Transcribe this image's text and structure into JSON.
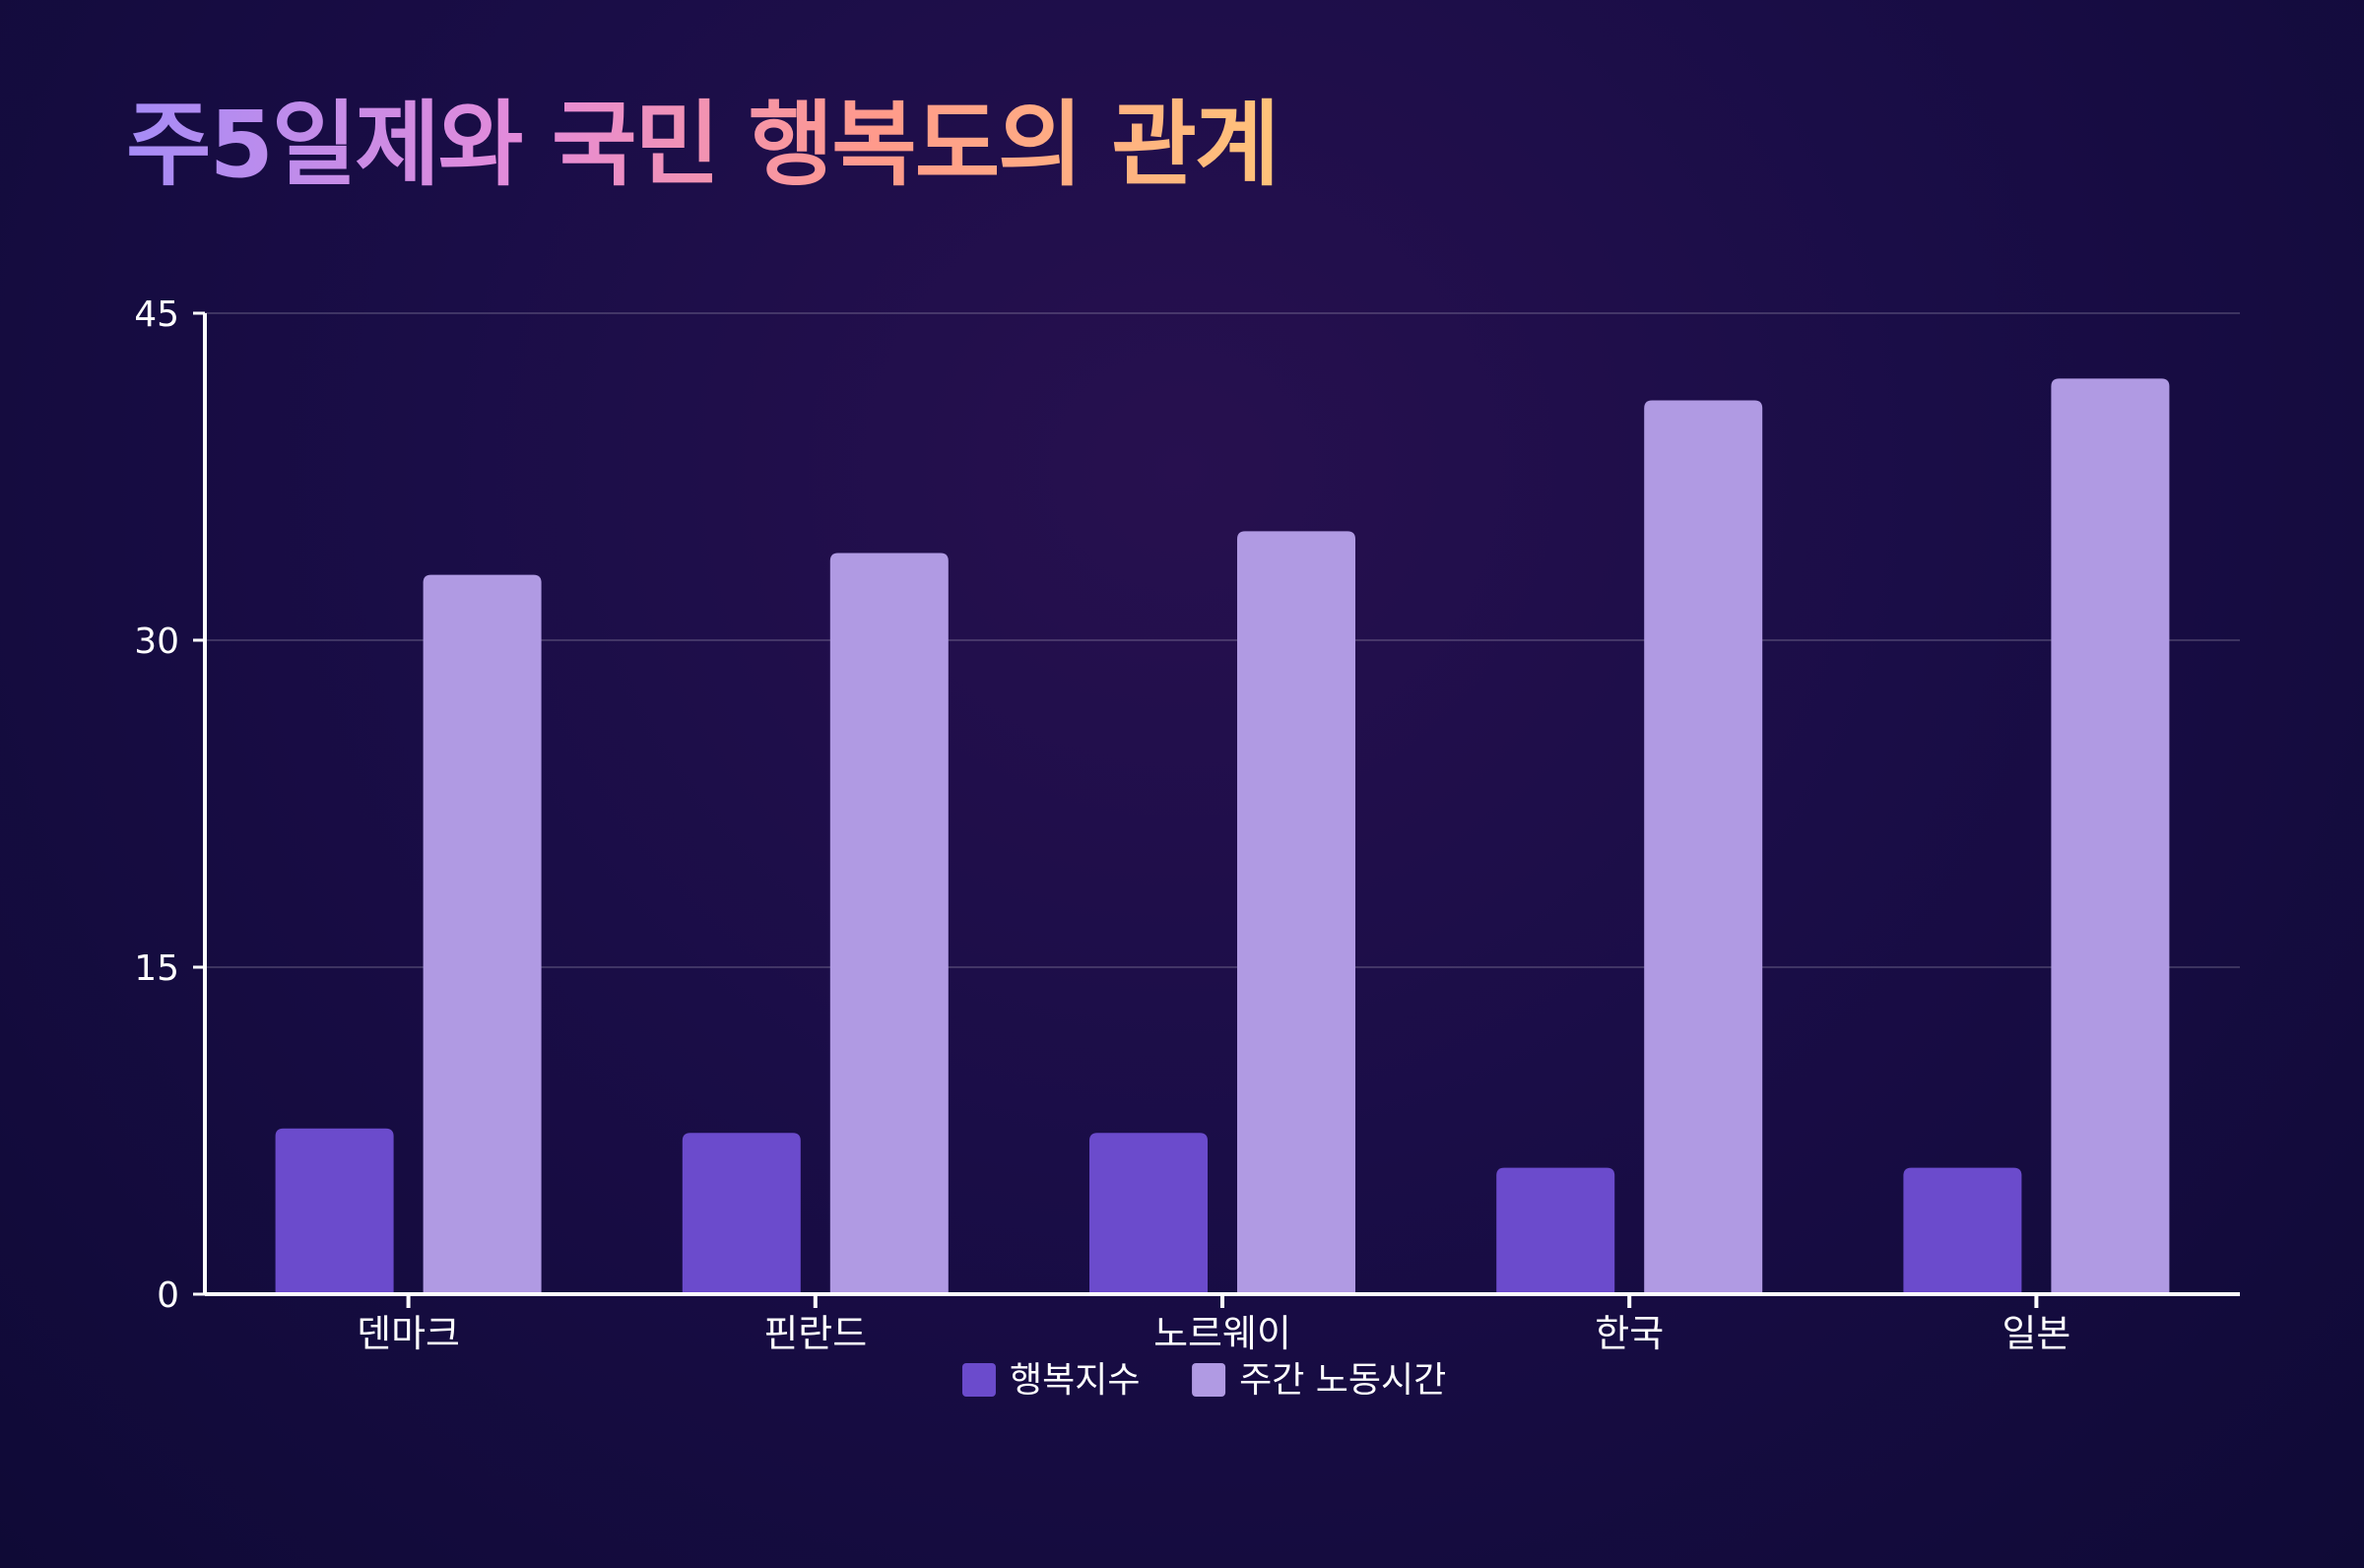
{
  "chart_data": {
    "type": "bar",
    "title": "주5일제와 국민 행복도의 관계",
    "categories": [
      "덴마크",
      "핀란드",
      "노르웨이",
      "한국",
      "일본"
    ],
    "series": [
      {
        "name": "행복지수",
        "values": [
          7.6,
          7.4,
          7.4,
          5.8,
          5.8
        ],
        "color": "#6b4bcc"
      },
      {
        "name": "주간 노동시간",
        "values": [
          33,
          34,
          35,
          41,
          42
        ],
        "color": "#b09ae3"
      }
    ],
    "yticks": [
      0,
      15,
      30,
      45
    ],
    "ylim": [
      0,
      45
    ],
    "grid": true,
    "legend_position": "bottom-center"
  }
}
